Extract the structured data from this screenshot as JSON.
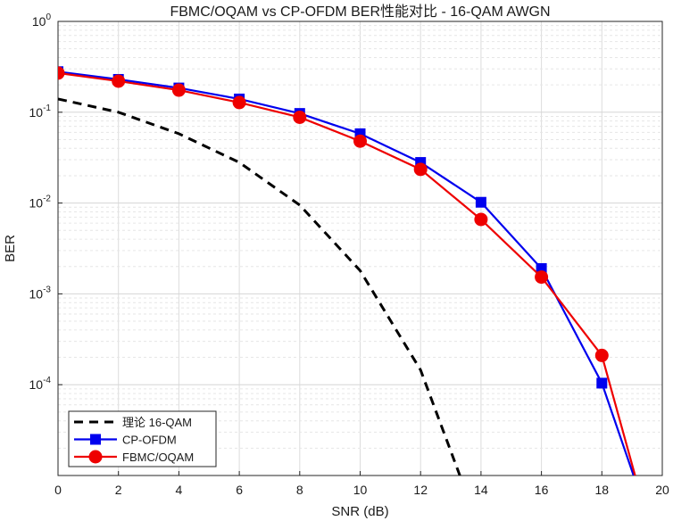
{
  "chart_data": {
    "type": "line",
    "title": "FBMC/OQAM vs CP-OFDM BER性能对比 - 16-QAM AWGN",
    "xlabel": "SNR (dB)",
    "ylabel": "BER",
    "xscale": "linear",
    "yscale": "log",
    "xlim": [
      0,
      20
    ],
    "ylim": [
      1e-05,
      1
    ],
    "x_ticks": [
      0,
      2,
      4,
      6,
      8,
      10,
      12,
      14,
      16,
      18,
      20
    ],
    "y_ticks": [
      {
        "value": 1,
        "base": "10",
        "exp": "0"
      },
      {
        "value": 0.1,
        "base": "10",
        "exp": "-1"
      },
      {
        "value": 0.01,
        "base": "10",
        "exp": "-2"
      },
      {
        "value": 0.001,
        "base": "10",
        "exp": "-3"
      },
      {
        "value": 0.0001,
        "base": "10",
        "exp": "-4"
      }
    ],
    "grid": true,
    "legend_position": "bottom-left",
    "series": [
      {
        "name": "理论 16-QAM",
        "color": "#000000",
        "style": "dashed",
        "marker": "none",
        "x": [
          0,
          2,
          4,
          6,
          8,
          10,
          12,
          13.3
        ],
        "values": [
          0.14,
          0.1,
          0.058,
          0.028,
          0.0095,
          0.0018,
          0.000145,
          1e-05
        ]
      },
      {
        "name": "CP-OFDM",
        "color": "#0000ee",
        "style": "solid",
        "marker": "square",
        "x": [
          0,
          2,
          4,
          6,
          8,
          10,
          12,
          14,
          16,
          18,
          19.05
        ],
        "values": [
          0.28,
          0.23,
          0.185,
          0.14,
          0.097,
          0.058,
          0.028,
          0.0102,
          0.0019,
          0.000104,
          1e-05
        ]
      },
      {
        "name": "FBMC/OQAM",
        "color": "#ee0000",
        "style": "solid",
        "marker": "circle",
        "x": [
          0,
          2,
          4,
          6,
          8,
          10,
          12,
          14,
          16,
          18,
          19.1
        ],
        "values": [
          0.27,
          0.22,
          0.175,
          0.128,
          0.088,
          0.048,
          0.0235,
          0.0066,
          0.00153,
          0.00021,
          1e-05
        ]
      }
    ]
  }
}
